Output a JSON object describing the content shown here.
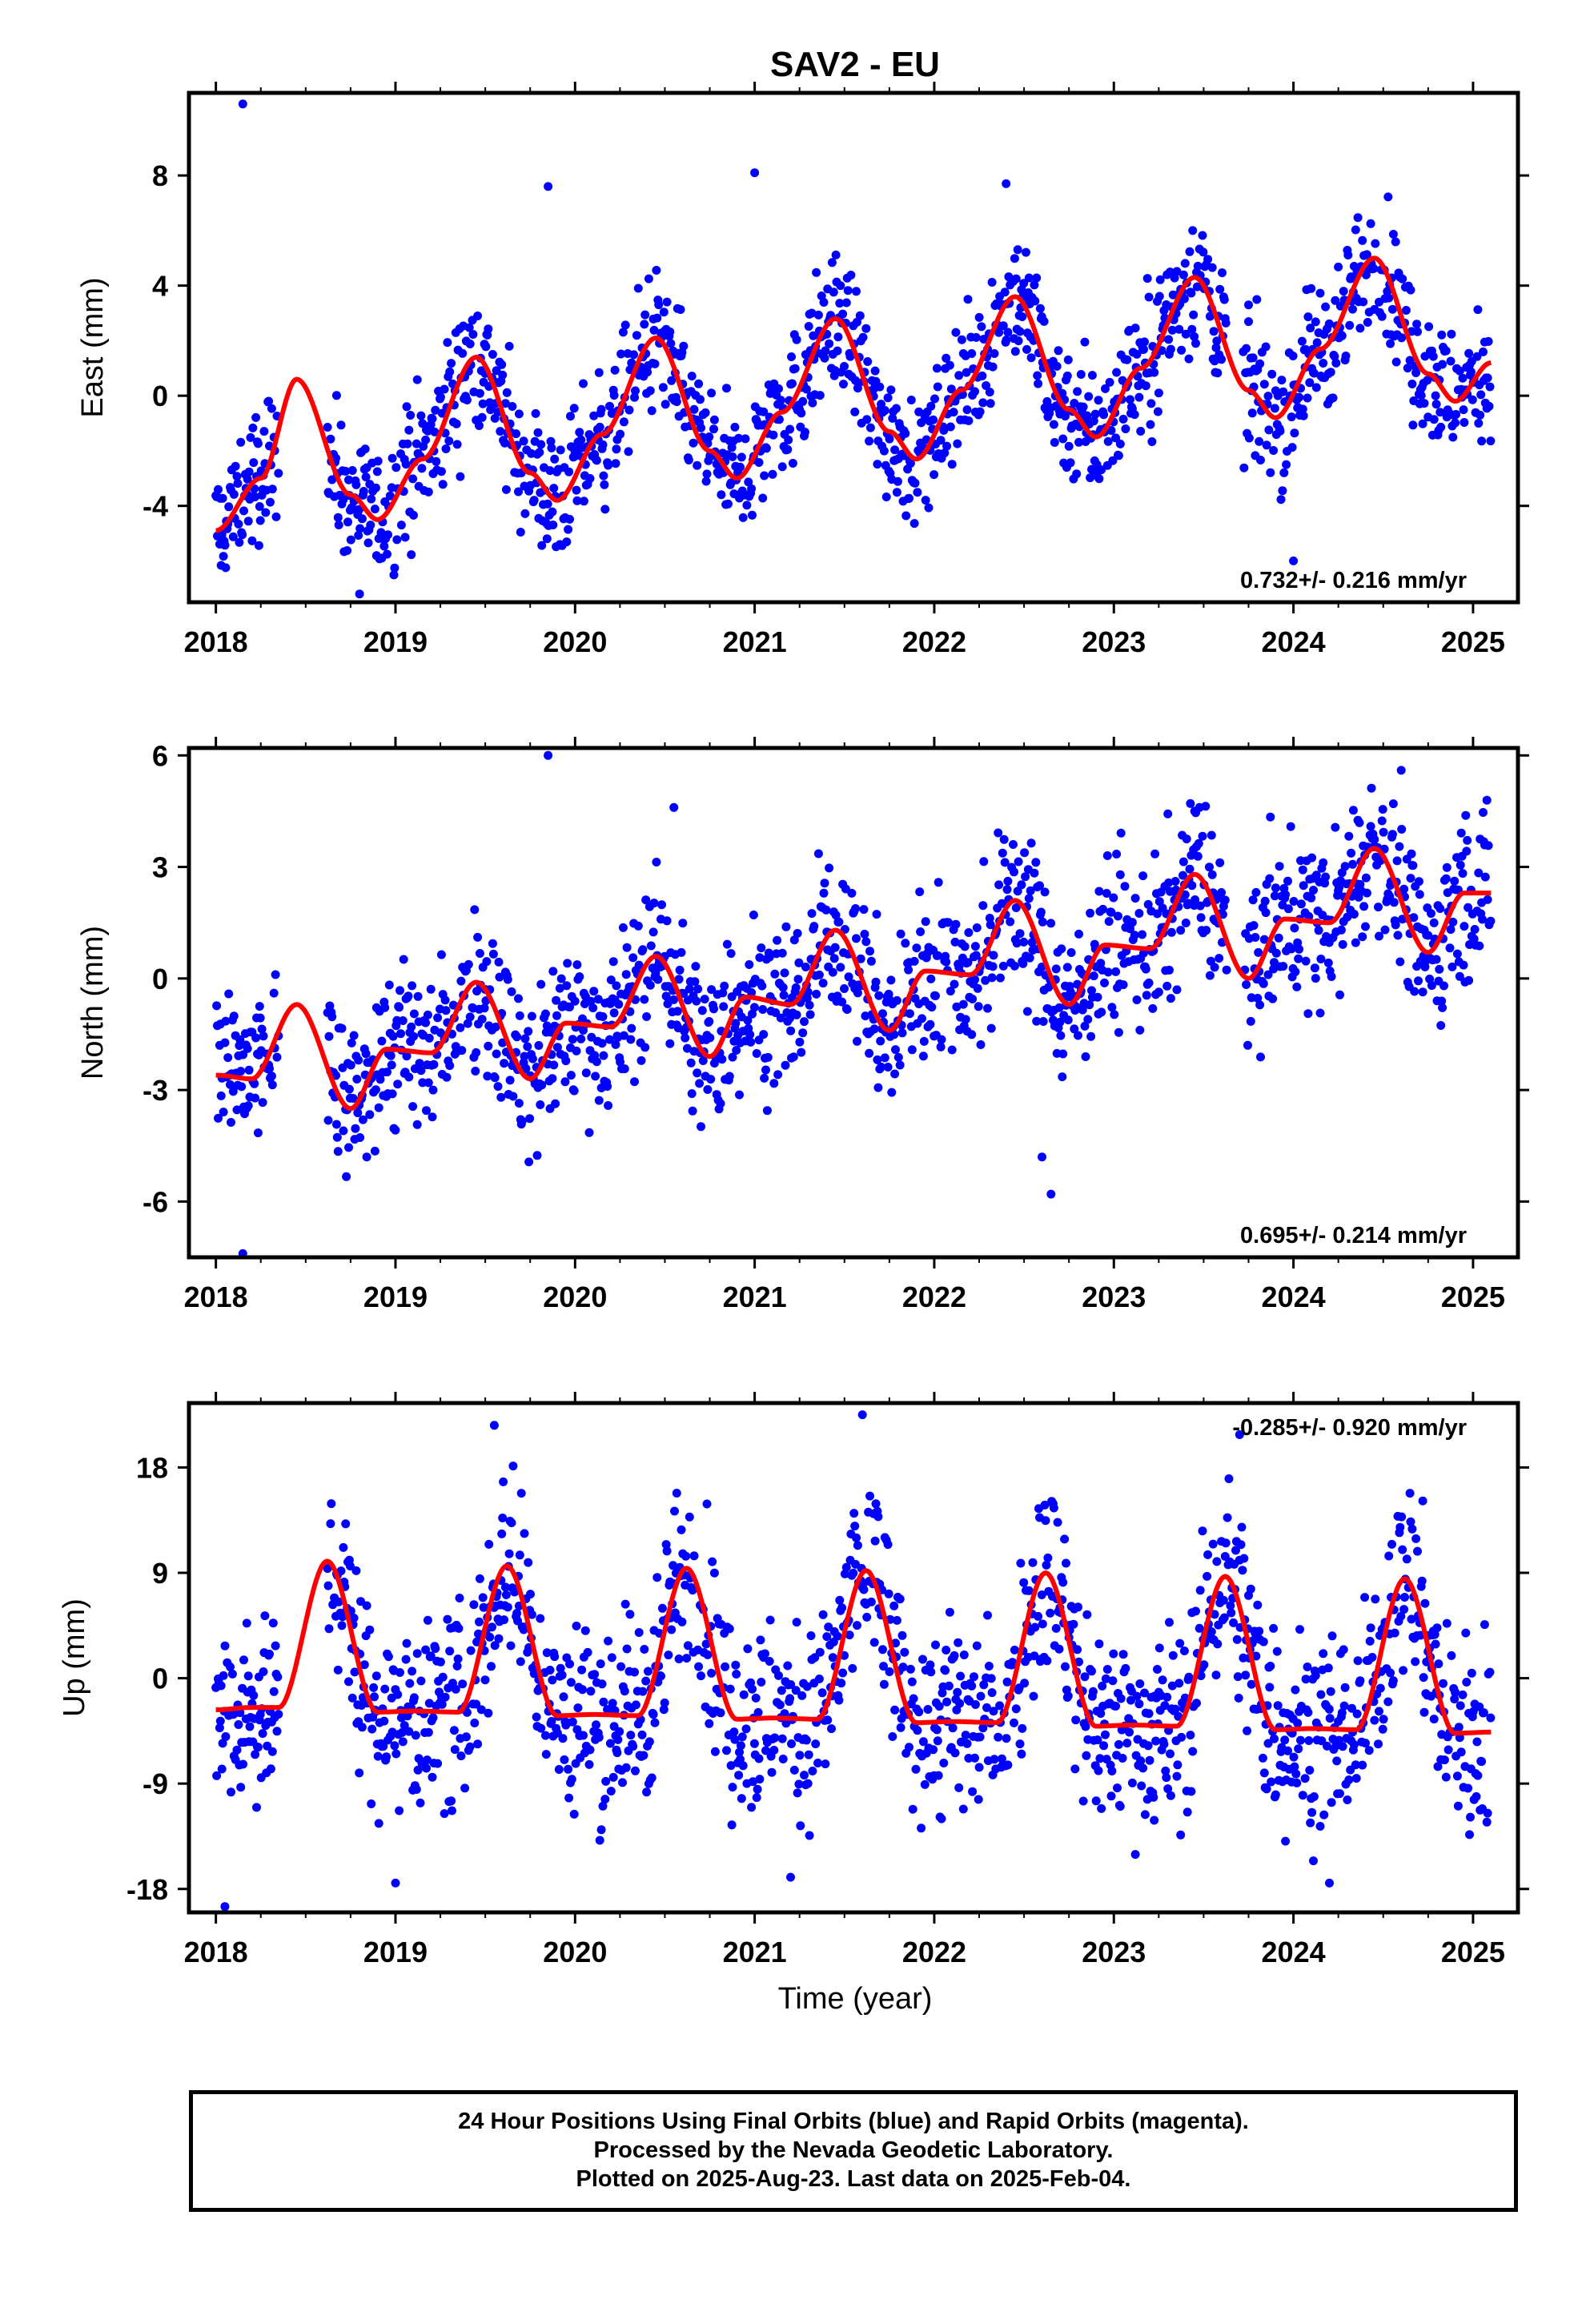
{
  "title": "SAV2 - EU",
  "xlabel": "Time (year)",
  "footer": {
    "line1": "24 Hour Positions Using Final Orbits (blue) and Rapid Orbits (magenta).",
    "line2": "Processed by the Nevada Geodetic Laboratory.",
    "line3": "Plotted on 2025-Aug-23. Last data on 2025-Feb-04."
  },
  "colors": {
    "data": "#0000ff",
    "model": "#ff0000",
    "axis": "#000000"
  },
  "chart_data": [
    {
      "type": "scatter",
      "ylabel": "East (mm)",
      "rate_label": "0.732+/- 0.216 mm/yr",
      "rate_position": "bottom-right",
      "xlim": [
        2017.85,
        2025.25
      ],
      "ylim": [
        -7.5,
        11
      ],
      "xticks": [
        2018,
        2019,
        2020,
        2021,
        2022,
        2023,
        2024,
        2025
      ],
      "yticks": [
        -4,
        0,
        4,
        8
      ],
      "model": {
        "x": [
          2018.0,
          2018.25,
          2018.45,
          2018.75,
          2018.9,
          2019.15,
          2019.45,
          2019.75,
          2019.9,
          2020.15,
          2020.45,
          2020.75,
          2020.9,
          2021.15,
          2021.45,
          2021.75,
          2021.9,
          2022.15,
          2022.45,
          2022.75,
          2022.9,
          2023.15,
          2023.45,
          2023.75,
          2023.9,
          2024.15,
          2024.45,
          2024.75,
          2024.9,
          2025.1
        ],
        "y": [
          -4.9,
          -3.0,
          0.6,
          -3.6,
          -4.5,
          -2.3,
          1.4,
          -2.8,
          -3.8,
          -1.4,
          2.1,
          -2.0,
          -3.0,
          -0.6,
          2.8,
          -1.3,
          -2.3,
          0.2,
          3.6,
          -0.5,
          -1.5,
          1.0,
          4.3,
          0.2,
          -0.8,
          1.7,
          5.0,
          0.8,
          -0.2,
          1.2
        ]
      },
      "outliers": {
        "x": [
          2018.15,
          2019.85,
          2021.0,
          2018.8,
          2022.4,
          2023.75,
          2024.0
        ],
        "y": [
          10.6,
          7.6,
          8.1,
          -7.2,
          7.7,
          3.3,
          -6.0
        ]
      },
      "series": [
        {
          "name": "Final Orbits",
          "color": "#0000ff",
          "kind": "points",
          "note": "daily positions scattered about the red seasonal model"
        },
        {
          "name": "Model",
          "color": "#ff0000",
          "kind": "line"
        }
      ]
    },
    {
      "type": "scatter",
      "ylabel": "North (mm)",
      "rate_label": "0.695+/- 0.214 mm/yr",
      "rate_position": "bottom-right",
      "xlim": [
        2017.85,
        2025.25
      ],
      "ylim": [
        -7.5,
        6.2
      ],
      "xticks": [
        2018,
        2019,
        2020,
        2021,
        2022,
        2023,
        2024,
        2025
      ],
      "yticks": [
        -6,
        -3,
        0,
        3,
        6
      ],
      "model": {
        "x": [
          2018.0,
          2018.2,
          2018.45,
          2018.75,
          2018.95,
          2019.2,
          2019.45,
          2019.75,
          2019.95,
          2020.2,
          2020.45,
          2020.75,
          2020.95,
          2021.2,
          2021.45,
          2021.75,
          2021.95,
          2022.2,
          2022.45,
          2022.75,
          2022.95,
          2023.2,
          2023.45,
          2023.75,
          2023.95,
          2024.2,
          2024.45,
          2024.75,
          2024.95,
          2025.1
        ],
        "y": [
          -2.6,
          -2.7,
          -0.7,
          -3.5,
          -1.9,
          -2.0,
          -0.1,
          -2.7,
          -1.2,
          -1.3,
          0.6,
          -2.1,
          -0.5,
          -0.7,
          1.3,
          -1.4,
          0.2,
          0.1,
          2.1,
          -0.7,
          0.9,
          0.8,
          2.8,
          0.0,
          1.6,
          1.5,
          3.5,
          0.7,
          2.3,
          2.3
        ]
      },
      "outliers": {
        "x": [
          2019.85,
          2018.15,
          2022.65,
          2022.6,
          2020.55,
          2023.45,
          2024.6
        ],
        "y": [
          6.0,
          -7.4,
          -5.8,
          -4.8,
          4.6,
          4.5,
          5.6
        ]
      },
      "series": [
        {
          "name": "Final Orbits",
          "color": "#0000ff",
          "kind": "points"
        },
        {
          "name": "Model",
          "color": "#ff0000",
          "kind": "line"
        }
      ]
    },
    {
      "type": "scatter",
      "ylabel": "Up (mm)",
      "rate_label": "-0.285+/- 0.920 mm/yr",
      "rate_position": "top-right",
      "xlim": [
        2017.85,
        2025.25
      ],
      "ylim": [
        -20,
        23.5
      ],
      "xticks": [
        2018,
        2019,
        2020,
        2021,
        2022,
        2023,
        2024,
        2025
      ],
      "yticks": [
        -18,
        -9,
        0,
        9,
        18
      ],
      "model": {
        "x": [
          2018.0,
          2018.2,
          2018.35,
          2018.62,
          2018.9,
          2019.1,
          2019.35,
          2019.62,
          2019.9,
          2020.1,
          2020.35,
          2020.62,
          2020.9,
          2021.1,
          2021.35,
          2021.62,
          2021.9,
          2022.1,
          2022.35,
          2022.62,
          2022.9,
          2023.1,
          2023.35,
          2023.62,
          2023.9,
          2024.1,
          2024.35,
          2024.62,
          2024.9,
          2025.1
        ],
        "y": [
          -2.7,
          -2.5,
          -2.5,
          10.0,
          -2.9,
          -2.8,
          -2.9,
          9.6,
          -3.2,
          -3.1,
          -3.2,
          9.4,
          -3.5,
          -3.4,
          -3.5,
          9.2,
          -3.8,
          -3.7,
          -3.8,
          9.0,
          -4.1,
          -4.0,
          -4.1,
          8.7,
          -4.4,
          -4.3,
          -4.4,
          8.5,
          -4.7,
          -4.6
        ]
      },
      "outliers": {
        "x": [
          2018.05,
          2019.0,
          2019.55,
          2021.6,
          2021.2,
          2023.7,
          2024.2
        ],
        "y": [
          -19.5,
          -17.5,
          21.6,
          22.5,
          -17.0,
          20.8,
          -17.5
        ]
      },
      "series": [
        {
          "name": "Final Orbits",
          "color": "#0000ff",
          "kind": "points"
        },
        {
          "name": "Model",
          "color": "#ff0000",
          "kind": "line"
        }
      ]
    }
  ]
}
